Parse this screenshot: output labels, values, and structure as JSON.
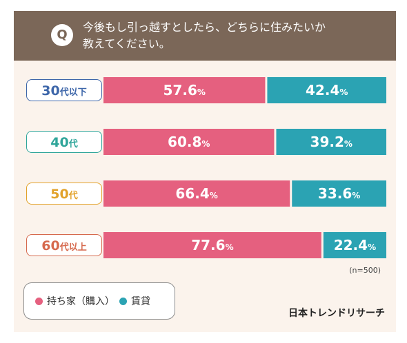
{
  "question": {
    "badge": "Q",
    "text": "今後もし引っ越すとしたら、どちらに住みたいか\n教えてください。"
  },
  "sample_note": "(n=500)",
  "brand": "日本トレンドリサーチ",
  "legend": [
    {
      "label": "持ち家（購入）",
      "color": "#e5607f"
    },
    {
      "label": "賃貸",
      "color": "#2ba3b3"
    }
  ],
  "chart_data": {
    "type": "bar",
    "stacked": true,
    "orientation": "horizontal",
    "unit": "%",
    "xlim": [
      0,
      100
    ],
    "categories": [
      "30代以下",
      "40代",
      "50代",
      "60代以上"
    ],
    "category_colors": [
      "#3d66a9",
      "#2fa59a",
      "#e2a22b",
      "#d6694d"
    ],
    "series": [
      {
        "name": "持ち家（購入）",
        "color": "#e5607f",
        "values": [
          57.6,
          60.8,
          66.4,
          77.6
        ]
      },
      {
        "name": "賃貸",
        "color": "#2ba3b3",
        "values": [
          42.4,
          39.2,
          33.6,
          22.4
        ]
      }
    ]
  }
}
